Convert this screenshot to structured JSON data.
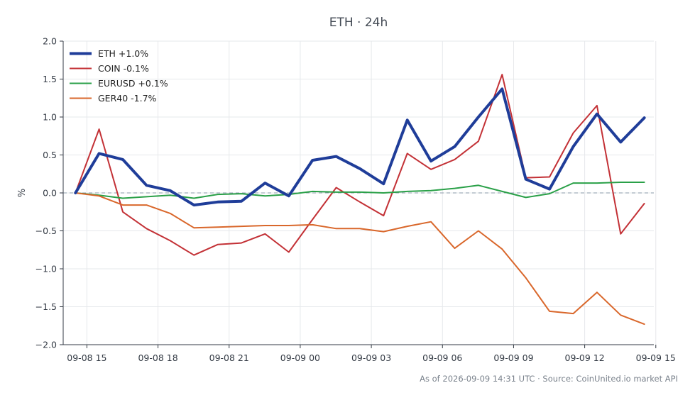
{
  "chart_data": {
    "type": "line",
    "title": "ETH · 24h",
    "xlabel": "",
    "ylabel": "%",
    "ylim": [
      -2.0,
      2.0
    ],
    "yticks": [
      2.0,
      1.5,
      1.0,
      0.5,
      0.0,
      -0.5,
      -1.0,
      -1.5,
      -2.0
    ],
    "ytick_labels": [
      "2.0",
      "1.5",
      "1.0",
      "0.5",
      "0.0",
      "−0.5",
      "−1.0",
      "−1.5",
      "−2.0"
    ],
    "xlim": [
      "09-08 14:00",
      "09-09 14:55"
    ],
    "xticks": [
      "09-08 15",
      "09-08 18",
      "09-08 21",
      "09-09 00",
      "09-09 03",
      "09-09 06",
      "09-09 09",
      "09-09 12",
      "09-09 15"
    ],
    "x": [
      "09-08 14:31",
      "09-08 15:31",
      "09-08 16:31",
      "09-08 17:31",
      "09-08 18:31",
      "09-08 19:31",
      "09-08 20:31",
      "09-08 21:31",
      "09-08 22:31",
      "09-08 23:31",
      "09-09 00:31",
      "09-09 01:31",
      "09-09 02:31",
      "09-09 03:31",
      "09-09 04:31",
      "09-09 05:31",
      "09-09 06:31",
      "09-09 07:31",
      "09-09 08:31",
      "09-09 09:31",
      "09-09 10:31",
      "09-09 11:31",
      "09-09 12:31",
      "09-09 13:31",
      "09-09 14:31"
    ],
    "baseline": 0,
    "grid": true,
    "legend_position": "top-left",
    "series": [
      {
        "name": "ETH +1.0%",
        "color": "#1f3d99",
        "width": 4,
        "values": [
          0.0,
          0.52,
          0.44,
          0.1,
          0.03,
          -0.16,
          -0.12,
          -0.11,
          0.13,
          -0.04,
          0.43,
          0.48,
          0.32,
          0.12,
          0.96,
          0.42,
          0.61,
          1.0,
          1.37,
          0.18,
          0.05,
          0.61,
          1.04,
          0.67,
          0.99
        ]
      },
      {
        "name": "COIN -0.1%",
        "color": "#c33136",
        "width": 2,
        "values": [
          0.0,
          0.84,
          -0.25,
          -0.47,
          -0.63,
          -0.82,
          -0.68,
          -0.66,
          -0.54,
          -0.78,
          -0.35,
          0.07,
          -0.12,
          -0.3,
          0.52,
          0.31,
          0.44,
          0.68,
          1.56,
          0.2,
          0.21,
          0.79,
          1.15,
          -0.54,
          -0.14
        ]
      },
      {
        "name": "EURUSD +0.1%",
        "color": "#2aa048",
        "width": 2,
        "values": [
          0.0,
          -0.03,
          -0.07,
          -0.05,
          -0.03,
          -0.07,
          -0.02,
          -0.01,
          -0.04,
          -0.02,
          0.02,
          0.01,
          0.01,
          0.0,
          0.02,
          0.03,
          0.06,
          0.1,
          0.02,
          -0.06,
          -0.01,
          0.13,
          0.13,
          0.14,
          0.14
        ]
      },
      {
        "name": "GER40 -1.7%",
        "color": "#d9672b",
        "width": 2,
        "values": [
          0.0,
          -0.04,
          -0.16,
          -0.16,
          -0.27,
          -0.46,
          -0.45,
          -0.44,
          -0.43,
          -0.43,
          -0.42,
          -0.47,
          -0.47,
          -0.51,
          -0.44,
          -0.38,
          -0.73,
          -0.5,
          -0.74,
          -1.12,
          -1.56,
          -1.59,
          -1.31,
          -1.61,
          -1.73
        ]
      }
    ]
  },
  "footer": {
    "text": "As of 2026-09-09 14:31 UTC · Source: CoinUnited.io market API"
  }
}
